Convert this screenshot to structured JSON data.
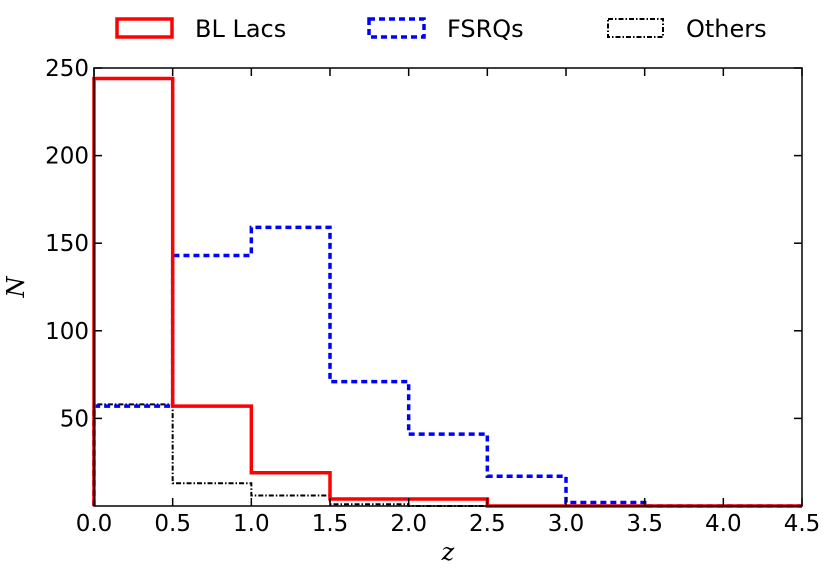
{
  "chart_data": {
    "type": "histogram",
    "bin_edges": [
      0.0,
      0.5,
      1.0,
      1.5,
      2.0,
      2.5,
      3.0,
      3.5,
      4.0,
      4.5
    ],
    "series": [
      {
        "name": "BL Lacs",
        "color": "#ff0000",
        "style": "solid",
        "values": [
          244,
          57,
          19,
          4,
          4,
          0,
          0,
          0,
          0
        ]
      },
      {
        "name": "FSRQs",
        "color": "#0000ff",
        "style": "dashed",
        "values": [
          57,
          143,
          159,
          71,
          41,
          17,
          2,
          0,
          0
        ]
      },
      {
        "name": "Others",
        "color": "#000000",
        "style": "dashdot",
        "values": [
          58,
          13,
          6,
          1,
          0,
          0,
          0,
          0,
          0
        ]
      }
    ],
    "xlabel": "z",
    "ylabel": "N",
    "xlim": [
      0.0,
      4.5
    ],
    "ylim": [
      0,
      250
    ],
    "xticks": [
      "0.0",
      "0.5",
      "1.0",
      "1.5",
      "2.0",
      "2.5",
      "3.0",
      "3.5",
      "4.0",
      "4.5"
    ],
    "yticks": [
      "50",
      "100",
      "150",
      "200",
      "250"
    ],
    "ytick_values": [
      50,
      100,
      150,
      200,
      250
    ],
    "grid": false,
    "legend_position": "top, above plot"
  }
}
